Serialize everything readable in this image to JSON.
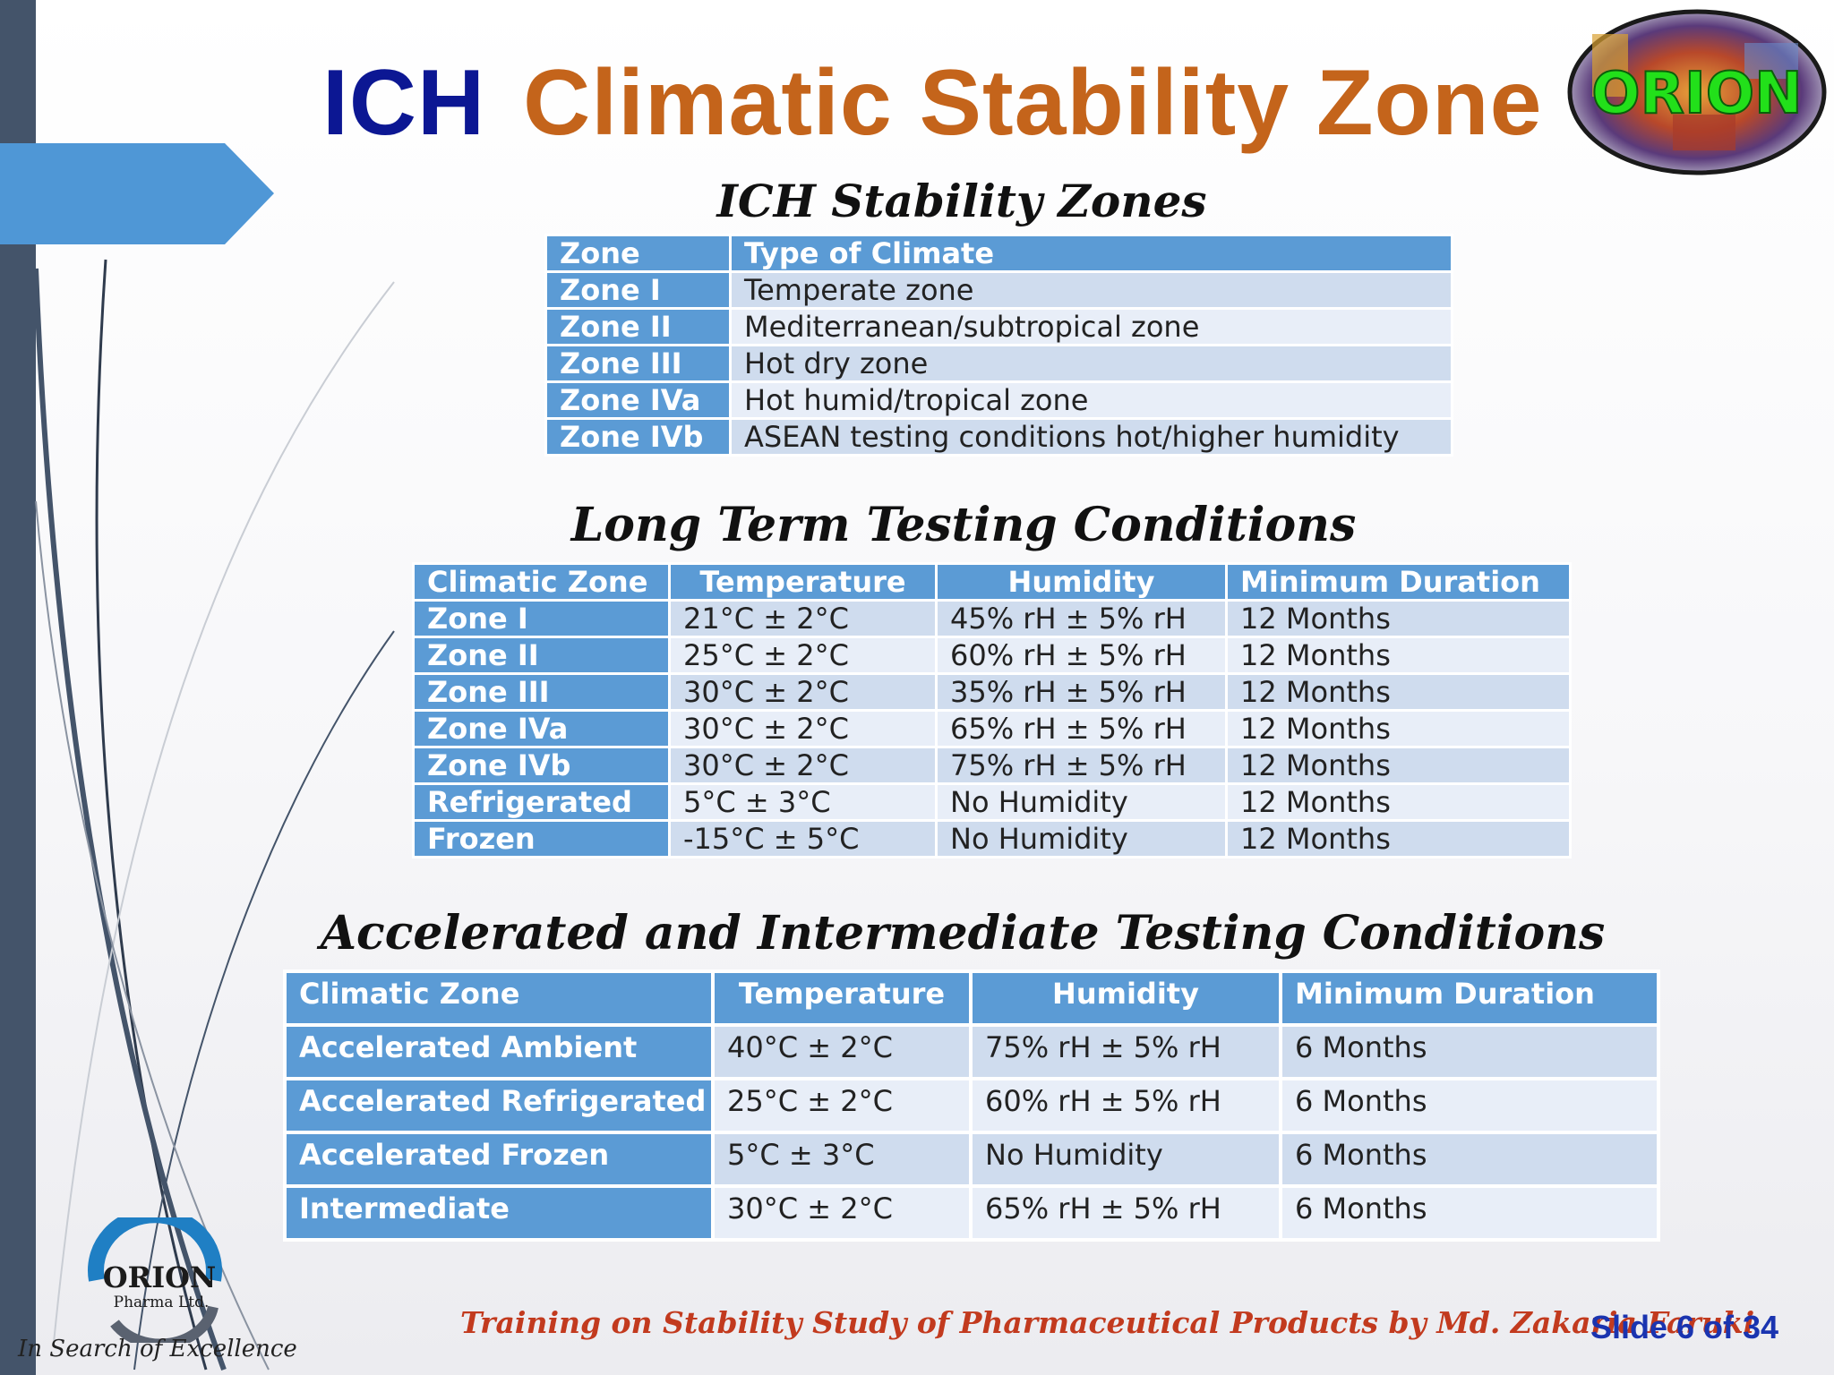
{
  "title": {
    "prefix": "ICH",
    "main": "Climatic Stability Zone"
  },
  "logo": {
    "text": "ORION"
  },
  "stability_zones": {
    "heading": "ICH Stability Zones",
    "columns": [
      "Zone",
      "Type of Climate"
    ],
    "rows": [
      [
        "Zone I",
        "Temperate zone"
      ],
      [
        "Zone II",
        "Mediterranean/subtropical zone"
      ],
      [
        "Zone III",
        "Hot dry zone"
      ],
      [
        "Zone IVa",
        "Hot humid/tropical zone"
      ],
      [
        "Zone IVb",
        "ASEAN testing conditions hot/higher humidity"
      ]
    ]
  },
  "long_term": {
    "heading": "Long Term Testing Conditions",
    "columns": [
      "Climatic Zone",
      "Temperature",
      "Humidity",
      "Minimum Duration"
    ],
    "rows": [
      [
        "Zone I",
        "21°C ± 2°C",
        "45% rH ± 5% rH",
        "12 Months"
      ],
      [
        "Zone II",
        "25°C ± 2°C",
        "60% rH ± 5% rH",
        "12 Months"
      ],
      [
        "Zone III",
        "30°C ± 2°C",
        "35% rH ± 5% rH",
        "12 Months"
      ],
      [
        "Zone IVa",
        "30°C ± 2°C",
        "65% rH ± 5% rH",
        "12 Months"
      ],
      [
        "Zone IVb",
        "30°C ± 2°C",
        "75% rH ± 5% rH",
        "12 Months"
      ],
      [
        "Refrigerated",
        "5°C ± 3°C",
        "No Humidity",
        "12 Months"
      ],
      [
        "Frozen",
        "-15°C ± 5°C",
        "No Humidity",
        "12 Months"
      ]
    ]
  },
  "accelerated": {
    "heading": "Accelerated and Intermediate Testing Conditions",
    "columns": [
      "Climatic Zone",
      "Temperature",
      "Humidity",
      "Minimum Duration"
    ],
    "rows": [
      [
        "Accelerated Ambient",
        "40°C ± 2°C",
        "75% rH ± 5% rH",
        "6 Months"
      ],
      [
        "Accelerated Refrigerated",
        "25°C ± 2°C",
        "60% rH ± 5% rH",
        "6 Months"
      ],
      [
        "Accelerated Frozen",
        "5°C ± 3°C",
        "No Humidity",
        "6 Months"
      ],
      [
        "Intermediate",
        "30°C ± 2°C",
        "65% rH ± 5% rH",
        "6 Months"
      ]
    ]
  },
  "footer": {
    "company_name": "ORION",
    "company_sub": "Pharma Ltd.",
    "tagline": "In Search of Excellence",
    "training_text": "Training on Stability Study of Pharmaceutical Products by Md. Zakaria Faruki",
    "slide_number": "Slide 6 of 34"
  },
  "colors": {
    "title_prefix": "#0c1793",
    "title_main": "#c4641b",
    "table_header": "#5b9bd5",
    "row_odd": "#cfdcee",
    "row_even": "#e8eef8",
    "sidebar": "#44546a",
    "footer_text": "#c23a1e",
    "slide_number": "#1a34b0"
  }
}
